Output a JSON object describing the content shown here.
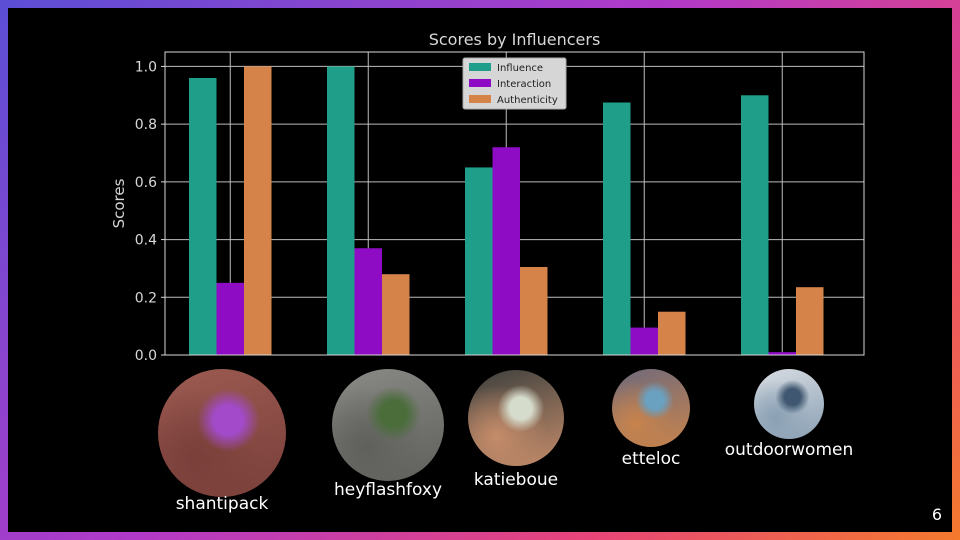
{
  "slide": {
    "page_number": "6"
  },
  "chart_data": {
    "type": "bar",
    "title": "Scores by Influencers",
    "xlabel": "",
    "ylabel": "Scores",
    "ylim": [
      0,
      1.05
    ],
    "yticks": [
      "0.0",
      "0.2",
      "0.4",
      "0.6",
      "0.8",
      "1.0"
    ],
    "grid": true,
    "legend_position": "top-center",
    "categories": [
      "shantipack",
      "heyflashfoxy",
      "katieboue",
      "etteloc",
      "outdoorwomen"
    ],
    "series": [
      {
        "name": "Influence",
        "color": "#1f9e89",
        "values": [
          0.96,
          1.0,
          0.65,
          0.875,
          0.9
        ]
      },
      {
        "name": "Interaction",
        "color": "#8e0cc4",
        "values": [
          0.25,
          0.37,
          0.72,
          0.095,
          0.01
        ]
      },
      {
        "name": "Authenticity",
        "color": "#d6834a",
        "values": [
          1.0,
          0.28,
          0.305,
          0.15,
          0.235
        ]
      }
    ]
  },
  "influencers": [
    {
      "handle": "shantipack",
      "photo_colors": [
        "#9c5b52",
        "#7a3f3a",
        "#a24ac9"
      ]
    },
    {
      "handle": "heyflashfoxy",
      "photo_colors": [
        "#8a8a86",
        "#5f605c",
        "#4a6d3a"
      ]
    },
    {
      "handle": "katieboue",
      "photo_colors": [
        "#3b3f3d",
        "#c58c6a",
        "#d6dccc"
      ]
    },
    {
      "handle": "etteloc",
      "photo_colors": [
        "#6f6a7c",
        "#c7834c",
        "#6aa0c0"
      ]
    },
    {
      "handle": "outdoorwomen",
      "photo_colors": [
        "#d9dde3",
        "#8aa0b4",
        "#3f5770"
      ]
    }
  ]
}
